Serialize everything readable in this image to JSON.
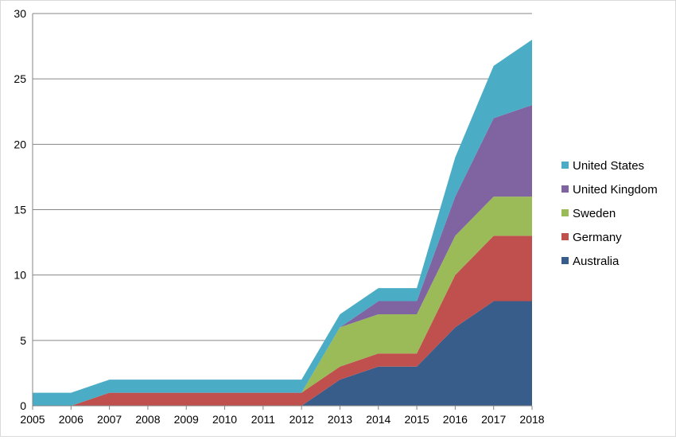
{
  "chart_data": {
    "type": "area",
    "stacked": true,
    "title": "",
    "xlabel": "",
    "ylabel": "",
    "x": [
      "2005",
      "2006",
      "2007",
      "2008",
      "2009",
      "2010",
      "2011",
      "2012",
      "2013",
      "2014",
      "2015",
      "2016",
      "2017",
      "2018"
    ],
    "ylim": [
      0,
      30
    ],
    "yticks": [
      "0",
      "5",
      "10",
      "15",
      "20",
      "25",
      "30"
    ],
    "grid": true,
    "legend_position": "right",
    "series": [
      {
        "name": "Australia",
        "color": "#385d8a",
        "values": [
          0,
          0,
          0,
          0,
          0,
          0,
          0,
          0,
          2,
          3,
          3,
          6,
          8,
          8
        ]
      },
      {
        "name": "Germany",
        "color": "#c0504d",
        "values": [
          0,
          0,
          1,
          1,
          1,
          1,
          1,
          1,
          1,
          1,
          1,
          4,
          5,
          5
        ]
      },
      {
        "name": "Sweden",
        "color": "#9bbb59",
        "values": [
          0,
          0,
          0,
          0,
          0,
          0,
          0,
          0,
          3,
          3,
          3,
          3,
          3,
          3
        ]
      },
      {
        "name": "United Kingdom",
        "color": "#8064a2",
        "values": [
          0,
          0,
          0,
          0,
          0,
          0,
          0,
          0,
          0,
          1,
          1,
          3,
          6,
          7
        ]
      },
      {
        "name": "United States",
        "color": "#4bacc6",
        "values": [
          1,
          1,
          1,
          1,
          1,
          1,
          1,
          1,
          1,
          1,
          1,
          3,
          4,
          5
        ]
      }
    ]
  }
}
